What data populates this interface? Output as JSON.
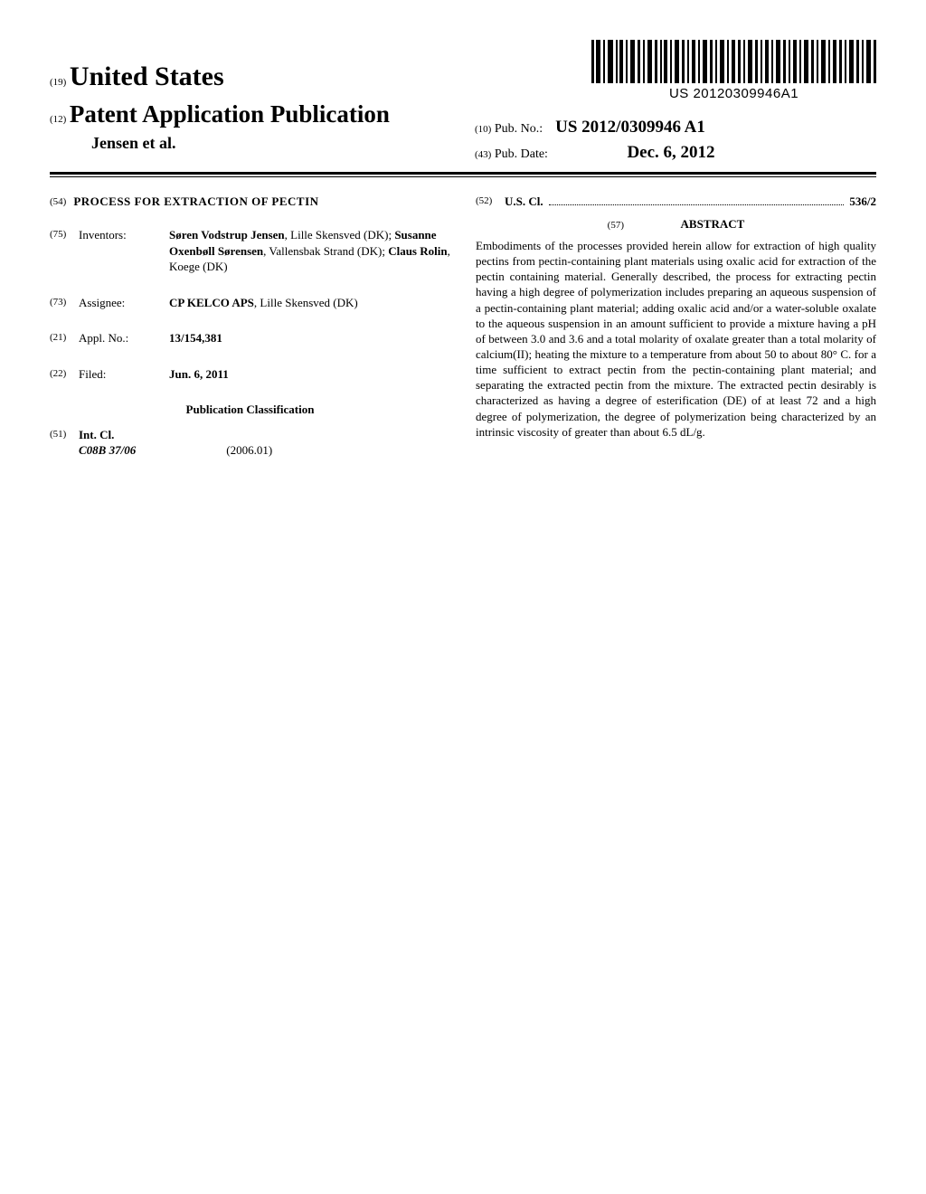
{
  "doc_number_small": "US 20120309946A1",
  "header": {
    "code19": "(19)",
    "us": "United States",
    "code12": "(12)",
    "pub_type": "Patent Application Publication",
    "authors": "Jensen et al.",
    "code10": "(10)",
    "pub_no_label": "Pub. No.:",
    "pub_no": "US 2012/0309946 A1",
    "code43": "(43)",
    "pub_date_label": "Pub. Date:",
    "pub_date": "Dec. 6, 2012"
  },
  "left": {
    "code54": "(54)",
    "title": "PROCESS FOR EXTRACTION OF PECTIN",
    "code75": "(75)",
    "inventors_label": "Inventors:",
    "inventors_html": "Søren Vodstrup Jensen|, Lille Skensved (DK); |Susanne Oxenbøll Sørensen|, Vallensbak Strand (DK); |Claus Rolin|, Koege (DK)",
    "code73": "(73)",
    "assignee_label": "Assignee:",
    "assignee_bold": "CP KELCO APS",
    "assignee_rest": ", Lille Skensved (DK)",
    "code21": "(21)",
    "appl_label": "Appl. No.:",
    "appl_no": "13/154,381",
    "code22": "(22)",
    "filed_label": "Filed:",
    "filed": "Jun. 6, 2011",
    "pub_class": "Publication Classification",
    "code51": "(51)",
    "intcl_label": "Int. Cl.",
    "intcl_code": "C08B 37/06",
    "intcl_year": "(2006.01)"
  },
  "right": {
    "code52": "(52)",
    "uscl_label": "U.S. Cl.",
    "uscl_val": "536/2",
    "code57": "(57)",
    "abstract_label": "ABSTRACT",
    "abstract": "Embodiments of the processes provided herein allow for extraction of high quality pectins from pectin-containing plant materials using oxalic acid for extraction of the pectin containing material. Generally described, the process for extracting pectin having a high degree of polymerization includes preparing an aqueous suspension of a pectin-containing plant material; adding oxalic acid and/or a water-soluble oxalate to the aqueous suspension in an amount sufficient to provide a mixture having a pH of between 3.0 and 3.6 and a total molarity of oxalate greater than a total molarity of calcium(II); heating the mixture to a temperature from about 50 to about 80° C. for a time sufficient to extract pectin from the pectin-containing plant material; and separating the extracted pectin from the mixture. The extracted pectin desirably is characterized as having a degree of esterification (DE) of at least 72 and a high degree of polymerization, the degree of polymerization being characterized by an intrinsic viscosity of greater than about 6.5 dL/g."
  }
}
